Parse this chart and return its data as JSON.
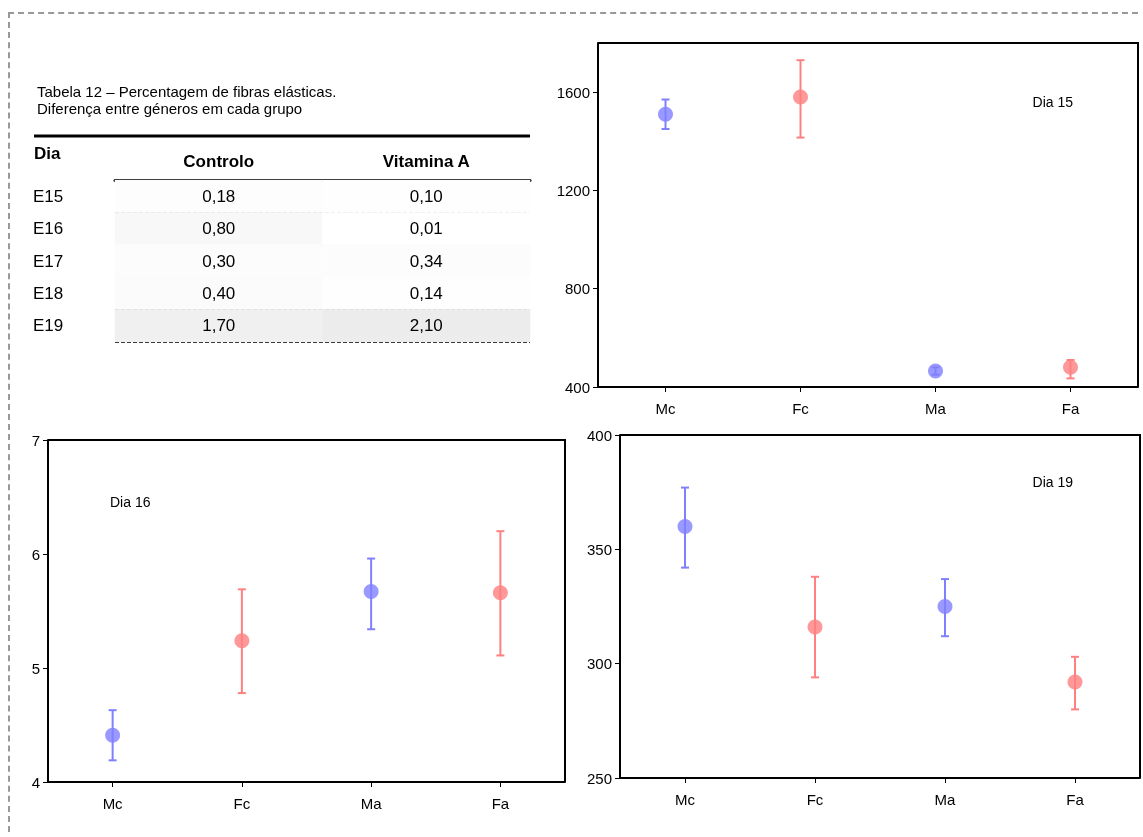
{
  "chart_data": [
    {
      "type": "heatmap",
      "title": "Tabela 12 – Percentagem de fibras elásticas. Diferença entre géneros em cada grupo",
      "ylabel": "Dia",
      "categories": [
        "Controlo",
        "Vitamina A"
      ],
      "y_categories": [
        "E15",
        "E16",
        "E17",
        "E18",
        "E19"
      ],
      "cells": [
        [
          0.18,
          0.1
        ],
        [
          0.8,
          0.01
        ],
        [
          0.3,
          0.34
        ],
        [
          0.4,
          0.14
        ],
        [
          1.7,
          2.1
        ]
      ],
      "cell_labels": [
        [
          "0,18",
          "0,10"
        ],
        [
          "0,80",
          "0,01"
        ],
        [
          "0,30",
          "0,34"
        ],
        [
          "0,40",
          "0,14"
        ],
        [
          "1,70",
          "2,10"
        ]
      ]
    },
    {
      "type": "scatter",
      "categories": [
        "Mc",
        "Fc",
        "Ma",
        "Fa"
      ],
      "values": [
        1510,
        1580,
        465,
        480
      ],
      "errors": [
        [
          1450,
          1570
        ],
        [
          1415,
          1730
        ],
        [
          450,
          480
        ],
        [
          435,
          510
        ]
      ],
      "colors": [
        "#8080ff",
        "#ff8080",
        "#8080ff",
        "#ff8080"
      ],
      "ylim": [
        400,
        1800
      ],
      "yticks": [
        400,
        800,
        1200,
        1600
      ],
      "marker": "circle",
      "grid": false,
      "annotations": [
        "Dia 15"
      ]
    },
    {
      "type": "scatter",
      "categories": [
        "Mc",
        "Fc",
        "Ma",
        "Fa"
      ],
      "values": [
        4.41,
        5.24,
        5.67,
        5.66
      ],
      "errors": [
        [
          4.19,
          4.63
        ],
        [
          4.78,
          5.69
        ],
        [
          5.34,
          5.96
        ],
        [
          5.11,
          6.2
        ]
      ],
      "colors": [
        "#8080ff",
        "#ff8080",
        "#8080ff",
        "#ff8080"
      ],
      "ylim": [
        4,
        7
      ],
      "yticks": [
        4,
        5,
        6,
        7
      ],
      "marker": "circle",
      "grid": false,
      "annotations": [
        "Dia 16"
      ]
    },
    {
      "type": "scatter",
      "categories": [
        "Mc",
        "Fc",
        "Ma",
        "Fa"
      ],
      "values": [
        360,
        316,
        325,
        292
      ],
      "errors": [
        [
          342,
          377
        ],
        [
          294,
          338
        ],
        [
          312,
          337
        ],
        [
          280,
          303
        ]
      ],
      "colors": [
        "#8080ff",
        "#ff8080",
        "#8080ff",
        "#ff8080"
      ],
      "ylim": [
        250,
        400
      ],
      "yticks": [
        250,
        300,
        350,
        400
      ],
      "marker": "circle",
      "grid": false,
      "annotations": [
        "Dia 19"
      ]
    }
  ]
}
